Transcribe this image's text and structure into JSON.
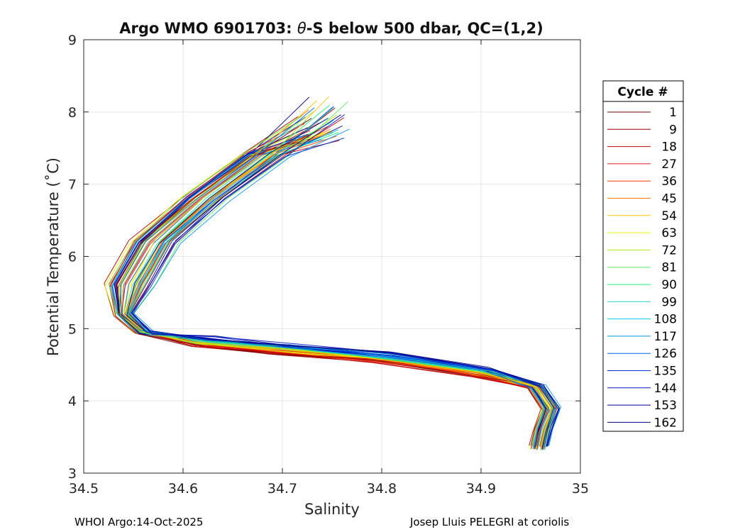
{
  "chart_data": {
    "type": "line",
    "title_parts": {
      "prefix": "Argo WMO 6901703: ",
      "symbol": "θ",
      "suffix": "-S below 500 dbar,  QC=(1,2)"
    },
    "xlabel": "Salinity",
    "ylabel": "Potential Temperature (˚C)",
    "xlim": [
      34.5,
      35
    ],
    "ylim": [
      3,
      9
    ],
    "xticks": [
      34.5,
      34.6,
      34.7,
      34.8,
      34.9,
      35
    ],
    "xtick_labels": [
      "34.5",
      "34.6",
      "34.7",
      "34.8",
      "34.9",
      "35"
    ],
    "yticks": [
      3,
      4,
      5,
      6,
      7,
      8,
      9
    ],
    "ytick_labels": [
      "3",
      "4",
      "5",
      "6",
      "7",
      "8",
      "9"
    ],
    "grid": true,
    "legend_title": "Cycle #",
    "legend_position": "outside-right",
    "legend": [
      {
        "label": "1",
        "color": "#7f0000"
      },
      {
        "label": "9",
        "color": "#a50000"
      },
      {
        "label": "18",
        "color": "#c80000"
      },
      {
        "label": "27",
        "color": "#e31a1c"
      },
      {
        "label": "36",
        "color": "#f04000"
      },
      {
        "label": "45",
        "color": "#ff7a00"
      },
      {
        "label": "54",
        "color": "#ffbf00"
      },
      {
        "label": "63",
        "color": "#f0f000"
      },
      {
        "label": "72",
        "color": "#a8f000"
      },
      {
        "label": "81",
        "color": "#5ee85e"
      },
      {
        "label": "90",
        "color": "#1ee87a"
      },
      {
        "label": "99",
        "color": "#20d4c8"
      },
      {
        "label": "108",
        "color": "#00c8f0"
      },
      {
        "label": "117",
        "color": "#0096e0"
      },
      {
        "label": "126",
        "color": "#0064e6"
      },
      {
        "label": "135",
        "color": "#0032dc"
      },
      {
        "label": "144",
        "color": "#0014c8"
      },
      {
        "label": "153",
        "color": "#00009c"
      },
      {
        "label": "162",
        "color": "#000080"
      }
    ],
    "representative_curve": [
      {
        "s": 34.74,
        "t": 7.9
      },
      {
        "s": 34.68,
        "t": 7.4
      },
      {
        "s": 34.62,
        "t": 6.8
      },
      {
        "s": 34.57,
        "t": 6.2
      },
      {
        "s": 34.545,
        "t": 5.6
      },
      {
        "s": 34.54,
        "t": 5.2
      },
      {
        "s": 34.56,
        "t": 4.95
      },
      {
        "s": 34.62,
        "t": 4.82
      },
      {
        "s": 34.7,
        "t": 4.72
      },
      {
        "s": 34.8,
        "t": 4.6
      },
      {
        "s": 34.9,
        "t": 4.4
      },
      {
        "s": 34.955,
        "t": 4.2
      },
      {
        "s": 34.97,
        "t": 3.9
      },
      {
        "s": 34.962,
        "t": 3.6
      },
      {
        "s": 34.958,
        "t": 3.35
      }
    ]
  },
  "footer": {
    "left": "WHOI Argo:14-Oct-2025",
    "right": "Josep Lluis PELEGRI at coriolis"
  }
}
